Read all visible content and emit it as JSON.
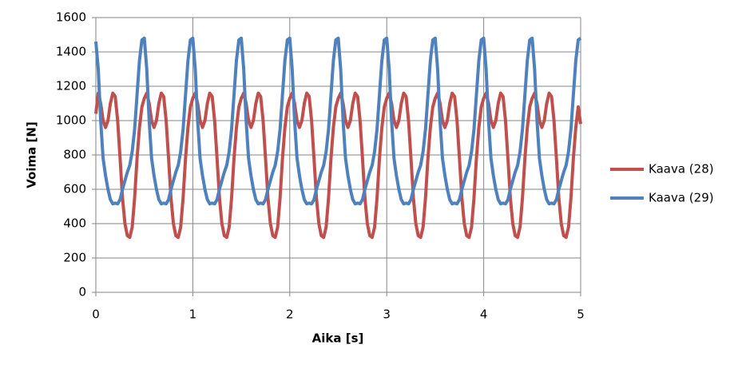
{
  "chart_data": {
    "type": "line",
    "xlabel": "Aika [s]",
    "ylabel": "Voima  [N]",
    "x": [
      0,
      0.025,
      0.05,
      0.075,
      0.1,
      0.125,
      0.15,
      0.175,
      0.2,
      0.225,
      0.25,
      0.275,
      0.3,
      0.325,
      0.35,
      0.375,
      0.4,
      0.425,
      0.45,
      0.475,
      0.5,
      0.525,
      0.55,
      0.575,
      0.6,
      0.625,
      0.65,
      0.675,
      0.7,
      0.725,
      0.75,
      0.775,
      0.8,
      0.825,
      0.85,
      0.875,
      0.9,
      0.925,
      0.95,
      0.975,
      1,
      1.025,
      1.05,
      1.075,
      1.1,
      1.125,
      1.15,
      1.175,
      1.2,
      1.225,
      1.25,
      1.275,
      1.3,
      1.325,
      1.35,
      1.375,
      1.4,
      1.425,
      1.45,
      1.475,
      1.5,
      1.525,
      1.55,
      1.575,
      1.6,
      1.625,
      1.65,
      1.675,
      1.7,
      1.725,
      1.75,
      1.775,
      1.8,
      1.825,
      1.85,
      1.875,
      1.9,
      1.925,
      1.95,
      1.975,
      2,
      2.025,
      2.05,
      2.075,
      2.1,
      2.125,
      2.15,
      2.175,
      2.2,
      2.225,
      2.25,
      2.275,
      2.3,
      2.325,
      2.35,
      2.375,
      2.4,
      2.425,
      2.45,
      2.475,
      2.5,
      2.525,
      2.55,
      2.575,
      2.6,
      2.625,
      2.65,
      2.675,
      2.7,
      2.725,
      2.75,
      2.775,
      2.8,
      2.825,
      2.85,
      2.875,
      2.9,
      2.925,
      2.95,
      2.975,
      3,
      3.025,
      3.05,
      3.075,
      3.1,
      3.125,
      3.15,
      3.175,
      3.2,
      3.225,
      3.25,
      3.275,
      3.3,
      3.325,
      3.35,
      3.375,
      3.4,
      3.425,
      3.45,
      3.475,
      3.5,
      3.525,
      3.55,
      3.575,
      3.6,
      3.625,
      3.65,
      3.675,
      3.7,
      3.725,
      3.75,
      3.775,
      3.8,
      3.825,
      3.85,
      3.875,
      3.9,
      3.925,
      3.95,
      3.975,
      4,
      4.025,
      4.05,
      4.075,
      4.1,
      4.125,
      4.15,
      4.175,
      4.2,
      4.225,
      4.25,
      4.275,
      4.3,
      4.325,
      4.35,
      4.375,
      4.4,
      4.425,
      4.45,
      4.475,
      4.5,
      4.525,
      4.55,
      4.575,
      4.6,
      4.625,
      4.65,
      4.675,
      4.7,
      4.725,
      4.75,
      4.775,
      4.8,
      4.825,
      4.85,
      4.875,
      4.9,
      4.925,
      4.95,
      4.975,
      5
    ],
    "series": [
      {
        "name": "Kaava (28)",
        "color": "#c0504d",
        "values": [
          1040,
          1160,
          1100,
          1000,
          960,
          1000,
          1100,
          1160,
          1140,
          1000,
          780,
          550,
          400,
          330,
          320,
          380,
          550,
          780,
          960,
          1080,
          1130,
          1160,
          1100,
          1000,
          960,
          1000,
          1100,
          1160,
          1140,
          1000,
          780,
          550,
          400,
          330,
          320,
          380,
          550,
          780,
          960,
          1080,
          1130,
          1160,
          1100,
          1000,
          960,
          1000,
          1100,
          1160,
          1140,
          1000,
          780,
          550,
          400,
          330,
          320,
          380,
          550,
          780,
          960,
          1080,
          1130,
          1160,
          1100,
          1000,
          960,
          1000,
          1100,
          1160,
          1140,
          1000,
          780,
          550,
          400,
          330,
          320,
          380,
          550,
          780,
          960,
          1080,
          1130,
          1160,
          1100,
          1000,
          960,
          1000,
          1100,
          1160,
          1140,
          1000,
          780,
          550,
          400,
          330,
          320,
          380,
          550,
          780,
          960,
          1080,
          1130,
          1160,
          1100,
          1000,
          960,
          1000,
          1100,
          1160,
          1140,
          1000,
          780,
          550,
          400,
          330,
          320,
          380,
          550,
          780,
          960,
          1080,
          1130,
          1160,
          1100,
          1000,
          960,
          1000,
          1100,
          1160,
          1140,
          1000,
          780,
          550,
          400,
          330,
          320,
          380,
          550,
          780,
          960,
          1080,
          1130,
          1160,
          1100,
          1000,
          960,
          1000,
          1100,
          1160,
          1140,
          1000,
          780,
          550,
          400,
          330,
          320,
          380,
          550,
          780,
          960,
          1080,
          1130,
          1160,
          1100,
          1000,
          960,
          1000,
          1100,
          1160,
          1140,
          1000,
          780,
          550,
          400,
          330,
          320,
          380,
          550,
          780,
          960,
          1080,
          1130,
          1160,
          1100,
          1000,
          960,
          1000,
          1100,
          1160,
          1140,
          1000,
          780,
          550,
          400,
          330,
          320,
          380,
          550,
          780,
          960,
          1080,
          980
        ]
      },
      {
        "name": "Kaava (29)",
        "color": "#4f81bd",
        "values": [
          1460,
          1300,
          1000,
          780,
          680,
          600,
          540,
          515,
          520,
          515,
          540,
          600,
          650,
          700,
          740,
          820,
          950,
          1150,
          1350,
          1470,
          1480,
          1300,
          1000,
          780,
          680,
          600,
          540,
          515,
          520,
          515,
          540,
          600,
          650,
          700,
          740,
          820,
          950,
          1150,
          1350,
          1470,
          1480,
          1300,
          1000,
          780,
          680,
          600,
          540,
          515,
          520,
          515,
          540,
          600,
          650,
          700,
          740,
          820,
          950,
          1150,
          1350,
          1470,
          1480,
          1300,
          1000,
          780,
          680,
          600,
          540,
          515,
          520,
          515,
          540,
          600,
          650,
          700,
          740,
          820,
          950,
          1150,
          1350,
          1470,
          1480,
          1300,
          1000,
          780,
          680,
          600,
          540,
          515,
          520,
          515,
          540,
          600,
          650,
          700,
          740,
          820,
          950,
          1150,
          1350,
          1470,
          1480,
          1300,
          1000,
          780,
          680,
          600,
          540,
          515,
          520,
          515,
          540,
          600,
          650,
          700,
          740,
          820,
          950,
          1150,
          1350,
          1470,
          1480,
          1300,
          1000,
          780,
          680,
          600,
          540,
          515,
          520,
          515,
          540,
          600,
          650,
          700,
          740,
          820,
          950,
          1150,
          1350,
          1470,
          1480,
          1300,
          1000,
          780,
          680,
          600,
          540,
          515,
          520,
          515,
          540,
          600,
          650,
          700,
          740,
          820,
          950,
          1150,
          1350,
          1470,
          1480,
          1300,
          1000,
          780,
          680,
          600,
          540,
          515,
          520,
          515,
          540,
          600,
          650,
          700,
          740,
          820,
          950,
          1150,
          1350,
          1470,
          1480,
          1300,
          1000,
          780,
          680,
          600,
          540,
          515,
          520,
          515,
          540,
          600,
          650,
          700,
          740,
          820,
          950,
          1150,
          1350,
          1470,
          1480
        ]
      }
    ],
    "xlim": [
      0,
      5
    ],
    "xticks": [
      0,
      1,
      2,
      3,
      4,
      5
    ],
    "ylim": [
      0,
      1600
    ],
    "yticks": [
      0,
      200,
      400,
      600,
      800,
      1000,
      1200,
      1400,
      1600
    ],
    "grid": true,
    "legend": "right"
  }
}
